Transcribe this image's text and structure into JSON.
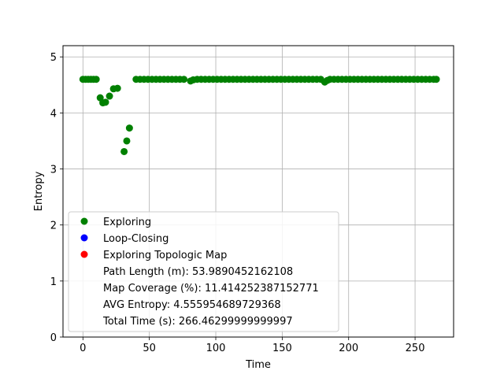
{
  "chart_data": {
    "type": "scatter",
    "title": "",
    "xlabel": "Time",
    "ylabel": "Entropy",
    "xlim": [
      -15,
      279
    ],
    "ylim": [
      0,
      5.2
    ],
    "xticks": [
      0,
      50,
      100,
      150,
      200,
      250
    ],
    "yticks": [
      0,
      1,
      2,
      3,
      4,
      5
    ],
    "grid": true,
    "legend_position": "lower-left",
    "series": [
      {
        "name": "Exploring",
        "color": "#008000",
        "points": [
          [
            0,
            4.6
          ],
          [
            2,
            4.6
          ],
          [
            4,
            4.6
          ],
          [
            6,
            4.6
          ],
          [
            8,
            4.6
          ],
          [
            10,
            4.6
          ],
          [
            13,
            4.27
          ],
          [
            15,
            4.18
          ],
          [
            17,
            4.19
          ],
          [
            20,
            4.3
          ],
          [
            23,
            4.43
          ],
          [
            26,
            4.44
          ],
          [
            31,
            3.31
          ],
          [
            33,
            3.5
          ],
          [
            35,
            3.73
          ],
          [
            40,
            4.6
          ],
          [
            43,
            4.6
          ],
          [
            46,
            4.6
          ],
          [
            49,
            4.6
          ],
          [
            52,
            4.6
          ],
          [
            55,
            4.6
          ],
          [
            58,
            4.6
          ],
          [
            61,
            4.6
          ],
          [
            64,
            4.6
          ],
          [
            67,
            4.6
          ],
          [
            70,
            4.6
          ],
          [
            73,
            4.6
          ],
          [
            76,
            4.6
          ],
          [
            81,
            4.57
          ],
          [
            83,
            4.59
          ],
          [
            86,
            4.6
          ],
          [
            89,
            4.6
          ],
          [
            92,
            4.6
          ],
          [
            95,
            4.6
          ],
          [
            98,
            4.6
          ],
          [
            101,
            4.6
          ],
          [
            104,
            4.6
          ],
          [
            107,
            4.6
          ],
          [
            110,
            4.6
          ],
          [
            113,
            4.6
          ],
          [
            116,
            4.6
          ],
          [
            119,
            4.6
          ],
          [
            122,
            4.6
          ],
          [
            125,
            4.6
          ],
          [
            128,
            4.6
          ],
          [
            131,
            4.6
          ],
          [
            134,
            4.6
          ],
          [
            137,
            4.6
          ],
          [
            140,
            4.6
          ],
          [
            143,
            4.6
          ],
          [
            146,
            4.6
          ],
          [
            149,
            4.6
          ],
          [
            152,
            4.6
          ],
          [
            155,
            4.6
          ],
          [
            158,
            4.6
          ],
          [
            161,
            4.6
          ],
          [
            164,
            4.6
          ],
          [
            167,
            4.6
          ],
          [
            170,
            4.6
          ],
          [
            173,
            4.6
          ],
          [
            176,
            4.6
          ],
          [
            179,
            4.6
          ],
          [
            182,
            4.55
          ],
          [
            184,
            4.58
          ],
          [
            186,
            4.6
          ],
          [
            189,
            4.6
          ],
          [
            192,
            4.6
          ],
          [
            195,
            4.6
          ],
          [
            198,
            4.6
          ],
          [
            201,
            4.6
          ],
          [
            204,
            4.6
          ],
          [
            207,
            4.6
          ],
          [
            210,
            4.6
          ],
          [
            213,
            4.6
          ],
          [
            216,
            4.6
          ],
          [
            219,
            4.6
          ],
          [
            222,
            4.6
          ],
          [
            225,
            4.6
          ],
          [
            228,
            4.6
          ],
          [
            231,
            4.6
          ],
          [
            234,
            4.6
          ],
          [
            237,
            4.6
          ],
          [
            240,
            4.6
          ],
          [
            243,
            4.6
          ],
          [
            246,
            4.6
          ],
          [
            249,
            4.6
          ],
          [
            252,
            4.6
          ],
          [
            255,
            4.6
          ],
          [
            258,
            4.6
          ],
          [
            261,
            4.6
          ],
          [
            264,
            4.6
          ],
          [
            266,
            4.6
          ]
        ]
      },
      {
        "name": "Loop-Closing",
        "color": "#0000ff",
        "points": []
      },
      {
        "name": "Exploring Topologic Map",
        "color": "#ff0000",
        "points": []
      }
    ],
    "legend_text": [
      "Path Length (m): 53.9890452162108",
      "Map Coverage (%): 11.414252387152771",
      "AVG Entropy: 4.555954689729368",
      "Total Time (s): 266.46299999999997"
    ]
  }
}
